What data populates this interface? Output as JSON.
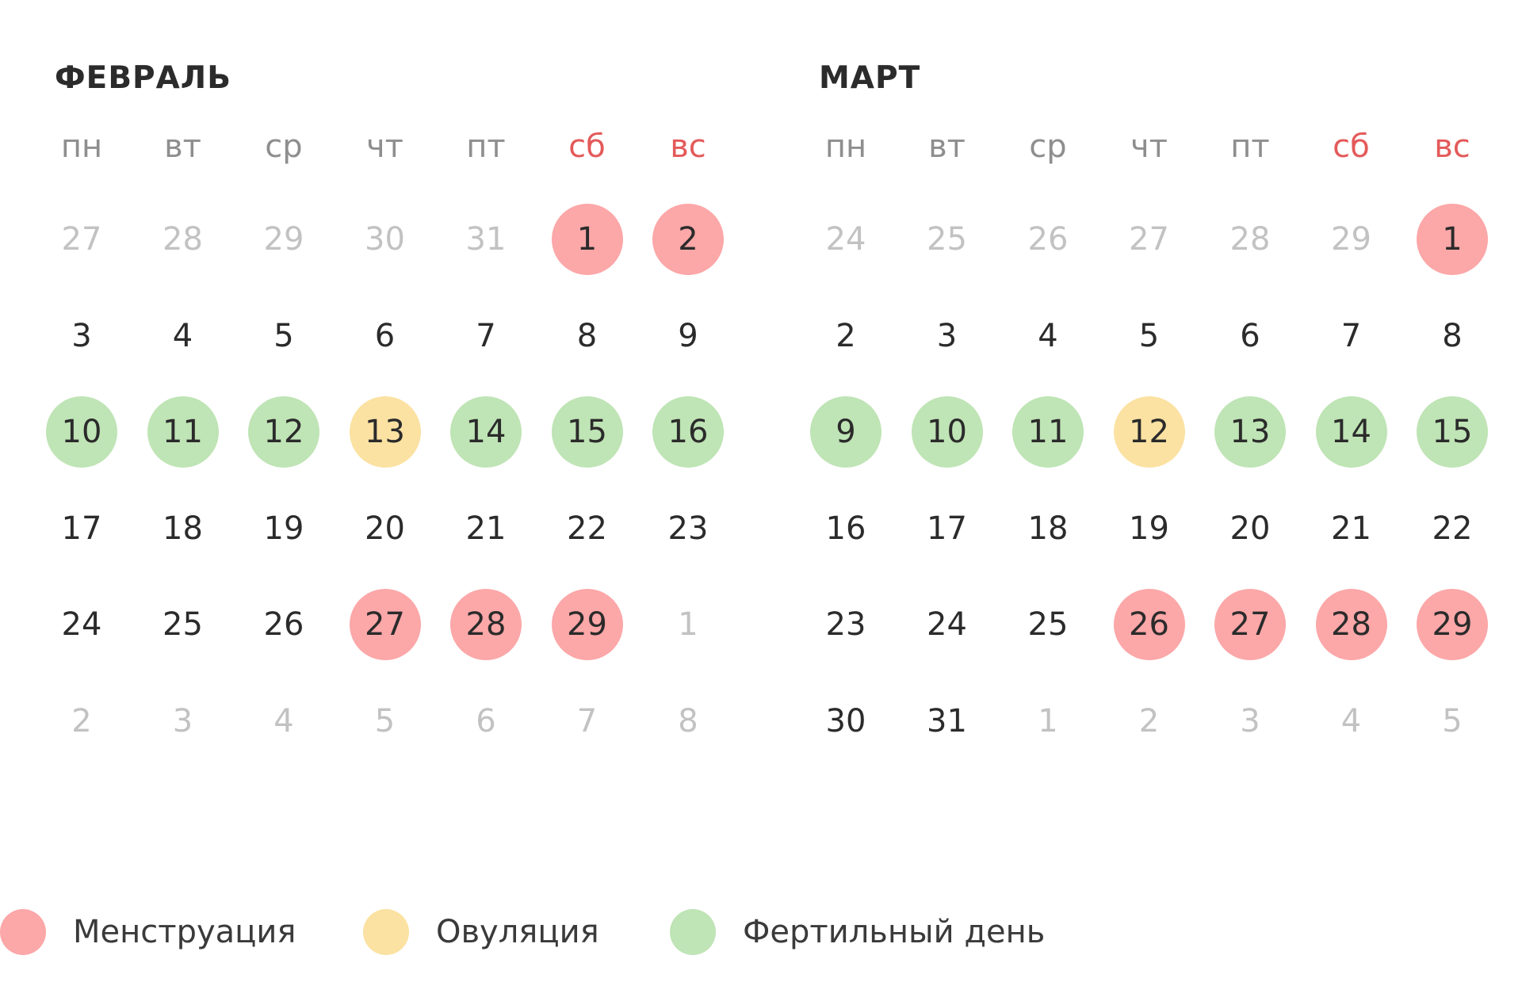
{
  "colors": {
    "period": "#fca7a8",
    "ovulation": "#fbe2a2",
    "fertile": "#bfe4b5",
    "weekend_text": "#e45a5a",
    "other_month_text": "#c2c2c2"
  },
  "weekdays": [
    "пн",
    "вт",
    "ср",
    "чт",
    "пт",
    "сб",
    "вс"
  ],
  "months": [
    {
      "title": "ФЕВРАЛЬ",
      "weeks": [
        [
          {
            "d": "27",
            "t": "other"
          },
          {
            "d": "28",
            "t": "other"
          },
          {
            "d": "29",
            "t": "other"
          },
          {
            "d": "30",
            "t": "other"
          },
          {
            "d": "31",
            "t": "other"
          },
          {
            "d": "1",
            "t": "period"
          },
          {
            "d": "2",
            "t": "period"
          }
        ],
        [
          {
            "d": "3",
            "t": ""
          },
          {
            "d": "4",
            "t": ""
          },
          {
            "d": "5",
            "t": ""
          },
          {
            "d": "6",
            "t": ""
          },
          {
            "d": "7",
            "t": ""
          },
          {
            "d": "8",
            "t": ""
          },
          {
            "d": "9",
            "t": ""
          }
        ],
        [
          {
            "d": "10",
            "t": "fertile"
          },
          {
            "d": "11",
            "t": "fertile"
          },
          {
            "d": "12",
            "t": "fertile"
          },
          {
            "d": "13",
            "t": "ovulation"
          },
          {
            "d": "14",
            "t": "fertile"
          },
          {
            "d": "15",
            "t": "fertile"
          },
          {
            "d": "16",
            "t": "fertile"
          }
        ],
        [
          {
            "d": "17",
            "t": ""
          },
          {
            "d": "18",
            "t": ""
          },
          {
            "d": "19",
            "t": ""
          },
          {
            "d": "20",
            "t": ""
          },
          {
            "d": "21",
            "t": ""
          },
          {
            "d": "22",
            "t": ""
          },
          {
            "d": "23",
            "t": ""
          }
        ],
        [
          {
            "d": "24",
            "t": ""
          },
          {
            "d": "25",
            "t": ""
          },
          {
            "d": "26",
            "t": ""
          },
          {
            "d": "27",
            "t": "period"
          },
          {
            "d": "28",
            "t": "period"
          },
          {
            "d": "29",
            "t": "period"
          },
          {
            "d": "1",
            "t": "other"
          }
        ],
        [
          {
            "d": "2",
            "t": "other"
          },
          {
            "d": "3",
            "t": "other"
          },
          {
            "d": "4",
            "t": "other"
          },
          {
            "d": "5",
            "t": "other"
          },
          {
            "d": "6",
            "t": "other"
          },
          {
            "d": "7",
            "t": "other"
          },
          {
            "d": "8",
            "t": "other"
          }
        ]
      ]
    },
    {
      "title": "МАРТ",
      "weeks": [
        [
          {
            "d": "24",
            "t": "other"
          },
          {
            "d": "25",
            "t": "other"
          },
          {
            "d": "26",
            "t": "other"
          },
          {
            "d": "27",
            "t": "other"
          },
          {
            "d": "28",
            "t": "other"
          },
          {
            "d": "29",
            "t": "other"
          },
          {
            "d": "1",
            "t": "period"
          }
        ],
        [
          {
            "d": "2",
            "t": ""
          },
          {
            "d": "3",
            "t": ""
          },
          {
            "d": "4",
            "t": ""
          },
          {
            "d": "5",
            "t": ""
          },
          {
            "d": "6",
            "t": ""
          },
          {
            "d": "7",
            "t": ""
          },
          {
            "d": "8",
            "t": ""
          }
        ],
        [
          {
            "d": "9",
            "t": "fertile"
          },
          {
            "d": "10",
            "t": "fertile"
          },
          {
            "d": "11",
            "t": "fertile"
          },
          {
            "d": "12",
            "t": "ovulation"
          },
          {
            "d": "13",
            "t": "fertile"
          },
          {
            "d": "14",
            "t": "fertile"
          },
          {
            "d": "15",
            "t": "fertile"
          }
        ],
        [
          {
            "d": "16",
            "t": ""
          },
          {
            "d": "17",
            "t": ""
          },
          {
            "d": "18",
            "t": ""
          },
          {
            "d": "19",
            "t": ""
          },
          {
            "d": "20",
            "t": ""
          },
          {
            "d": "21",
            "t": ""
          },
          {
            "d": "22",
            "t": ""
          }
        ],
        [
          {
            "d": "23",
            "t": ""
          },
          {
            "d": "24",
            "t": ""
          },
          {
            "d": "25",
            "t": ""
          },
          {
            "d": "26",
            "t": "period"
          },
          {
            "d": "27",
            "t": "period"
          },
          {
            "d": "28",
            "t": "period"
          },
          {
            "d": "29",
            "t": "period"
          }
        ],
        [
          {
            "d": "30",
            "t": ""
          },
          {
            "d": "31",
            "t": ""
          },
          {
            "d": "1",
            "t": "other"
          },
          {
            "d": "2",
            "t": "other"
          },
          {
            "d": "3",
            "t": "other"
          },
          {
            "d": "4",
            "t": "other"
          },
          {
            "d": "5",
            "t": "other"
          }
        ]
      ]
    }
  ],
  "legend": [
    {
      "type": "period",
      "label": "Менструация"
    },
    {
      "type": "ovulation",
      "label": "Овуляция"
    },
    {
      "type": "fertile",
      "label": "Фертильный день"
    }
  ]
}
